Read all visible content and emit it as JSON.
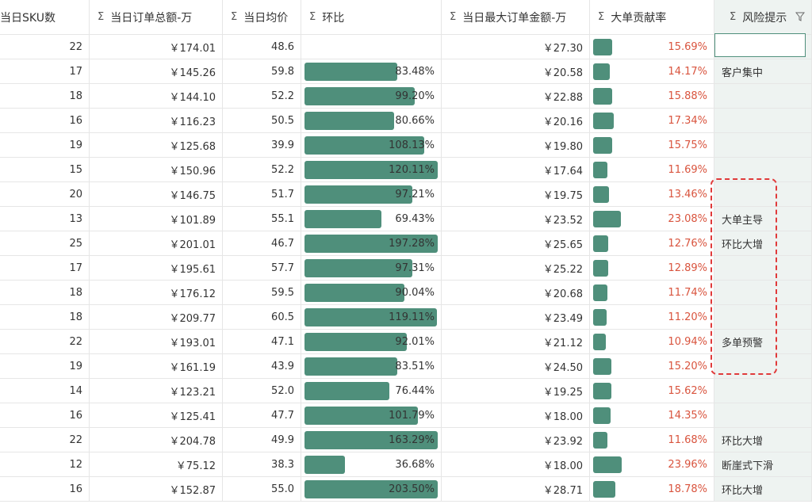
{
  "headers": {
    "sku": "当日SKU数",
    "total": "当日订单总额-万",
    "avg": "当日均价",
    "ratio": "环比",
    "max": "当日最大订单金额-万",
    "big": "大单贡献率",
    "risk": "风险提示",
    "sigma": "Σ"
  },
  "accent_color": "#4f8f7b",
  "rate_color": "#d9543e",
  "rows": [
    {
      "sku": "22",
      "total": "￥174.01",
      "avg": "48.6",
      "ratio": "",
      "ratio_val": null,
      "max": "￥27.30",
      "big": "15.69%",
      "big_val": 15.69,
      "risk": ""
    },
    {
      "sku": "17",
      "total": "￥145.26",
      "avg": "59.8",
      "ratio": "83.48%",
      "ratio_val": 83.48,
      "max": "￥20.58",
      "big": "14.17%",
      "big_val": 14.17,
      "risk": "客户集中"
    },
    {
      "sku": "18",
      "total": "￥144.10",
      "avg": "52.2",
      "ratio": "99.20%",
      "ratio_val": 99.2,
      "max": "￥22.88",
      "big": "15.88%",
      "big_val": 15.88,
      "risk": ""
    },
    {
      "sku": "16",
      "total": "￥116.23",
      "avg": "50.5",
      "ratio": "80.66%",
      "ratio_val": 80.66,
      "max": "￥20.16",
      "big": "17.34%",
      "big_val": 17.34,
      "risk": ""
    },
    {
      "sku": "19",
      "total": "￥125.68",
      "avg": "39.9",
      "ratio": "108.13%",
      "ratio_val": 108.13,
      "max": "￥19.80",
      "big": "15.75%",
      "big_val": 15.75,
      "risk": ""
    },
    {
      "sku": "15",
      "total": "￥150.96",
      "avg": "52.2",
      "ratio": "120.11%",
      "ratio_val": 120.11,
      "max": "￥17.64",
      "big": "11.69%",
      "big_val": 11.69,
      "risk": ""
    },
    {
      "sku": "20",
      "total": "￥146.75",
      "avg": "51.7",
      "ratio": "97.21%",
      "ratio_val": 97.21,
      "max": "￥19.75",
      "big": "13.46%",
      "big_val": 13.46,
      "risk": ""
    },
    {
      "sku": "13",
      "total": "￥101.89",
      "avg": "55.1",
      "ratio": "69.43%",
      "ratio_val": 69.43,
      "max": "￥23.52",
      "big": "23.08%",
      "big_val": 23.08,
      "risk": "大单主导"
    },
    {
      "sku": "25",
      "total": "￥201.01",
      "avg": "46.7",
      "ratio": "197.28%",
      "ratio_val": 197.28,
      "max": "￥25.65",
      "big": "12.76%",
      "big_val": 12.76,
      "risk": "环比大增"
    },
    {
      "sku": "17",
      "total": "￥195.61",
      "avg": "57.7",
      "ratio": "97.31%",
      "ratio_val": 97.31,
      "max": "￥25.22",
      "big": "12.89%",
      "big_val": 12.89,
      "risk": ""
    },
    {
      "sku": "18",
      "total": "￥176.12",
      "avg": "59.5",
      "ratio": "90.04%",
      "ratio_val": 90.04,
      "max": "￥20.68",
      "big": "11.74%",
      "big_val": 11.74,
      "risk": ""
    },
    {
      "sku": "18",
      "total": "￥209.77",
      "avg": "60.5",
      "ratio": "119.11%",
      "ratio_val": 119.11,
      "max": "￥23.49",
      "big": "11.20%",
      "big_val": 11.2,
      "risk": ""
    },
    {
      "sku": "22",
      "total": "￥193.01",
      "avg": "47.1",
      "ratio": "92.01%",
      "ratio_val": 92.01,
      "max": "￥21.12",
      "big": "10.94%",
      "big_val": 10.94,
      "risk": "多单预警"
    },
    {
      "sku": "19",
      "total": "￥161.19",
      "avg": "43.9",
      "ratio": "83.51%",
      "ratio_val": 83.51,
      "max": "￥24.50",
      "big": "15.20%",
      "big_val": 15.2,
      "risk": ""
    },
    {
      "sku": "14",
      "total": "￥123.21",
      "avg": "52.0",
      "ratio": "76.44%",
      "ratio_val": 76.44,
      "max": "￥19.25",
      "big": "15.62%",
      "big_val": 15.62,
      "risk": ""
    },
    {
      "sku": "16",
      "total": "￥125.41",
      "avg": "47.7",
      "ratio": "101.79%",
      "ratio_val": 101.79,
      "max": "￥18.00",
      "big": "14.35%",
      "big_val": 14.35,
      "risk": ""
    },
    {
      "sku": "22",
      "total": "￥204.78",
      "avg": "49.9",
      "ratio": "163.29%",
      "ratio_val": 163.29,
      "max": "￥23.92",
      "big": "11.68%",
      "big_val": 11.68,
      "risk": "环比大增"
    },
    {
      "sku": "12",
      "total": "￥75.12",
      "avg": "38.3",
      "ratio": "36.68%",
      "ratio_val": 36.68,
      "max": "￥18.00",
      "big": "23.96%",
      "big_val": 23.96,
      "risk": "断崖式下滑"
    },
    {
      "sku": "16",
      "total": "￥152.87",
      "avg": "55.0",
      "ratio": "203.50%",
      "ratio_val": 203.5,
      "max": "￥28.71",
      "big": "18.78%",
      "big_val": 18.78,
      "risk": "环比大增"
    }
  ]
}
